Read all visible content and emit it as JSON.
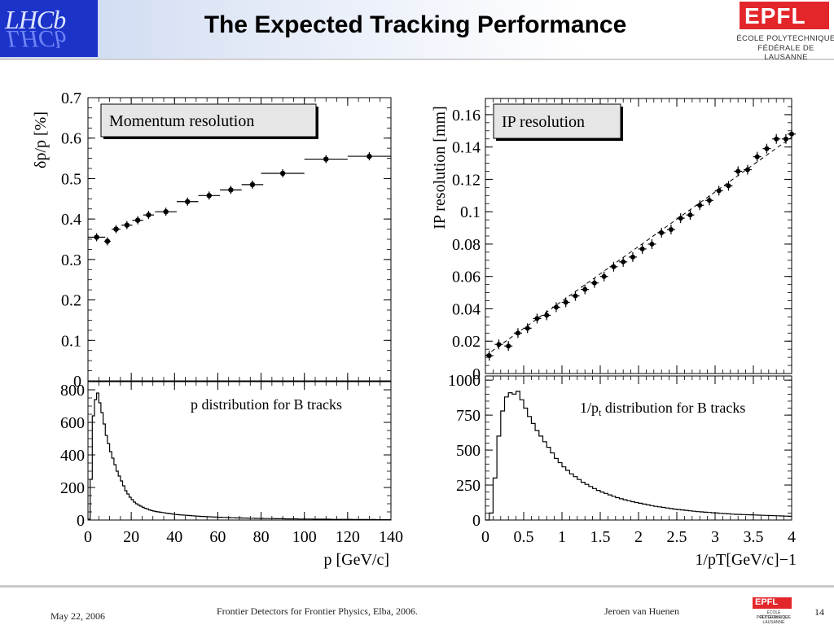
{
  "header": {
    "title": "The Expected Tracking Performance",
    "left_logo_text": "LHCb",
    "right_logo": {
      "mark": "EPFL",
      "line1": "ÉCOLE POLYTECHNIQUE",
      "line2": "FÉDÉRALE DE LAUSANNE"
    }
  },
  "footer": {
    "date": "May 22, 2006",
    "event": "Frontier Detectors for Frontier Physics, Elba, 2006.",
    "author": "Jeroen van Huenen",
    "page": "14"
  },
  "colors": {
    "logo_blue": "#1b33c9",
    "epfl_red": "#e3262a",
    "label_box": "#e6e6e6"
  },
  "chart_data": [
    {
      "id": "momentum-resolution",
      "type": "scatter",
      "label": "Momentum resolution",
      "ylabel": "δp/p [%]",
      "xlim": [
        0,
        140
      ],
      "ylim": [
        0,
        0.7
      ],
      "yticks": [
        "0",
        "0.1",
        "0.2",
        "0.3",
        "0.4",
        "0.5",
        "0.6",
        "0.7"
      ],
      "grid": false,
      "points": [
        {
          "x": 4,
          "xerr": 4,
          "y": 0.355
        },
        {
          "x": 9,
          "xerr": 1.5,
          "y": 0.345
        },
        {
          "x": 13,
          "xerr": 2,
          "y": 0.375
        },
        {
          "x": 18,
          "xerr": 2.5,
          "y": 0.385
        },
        {
          "x": 23,
          "xerr": 2.5,
          "y": 0.397
        },
        {
          "x": 28,
          "xerr": 2.5,
          "y": 0.41
        },
        {
          "x": 36,
          "xerr": 5,
          "y": 0.418
        },
        {
          "x": 46,
          "xerr": 5,
          "y": 0.443
        },
        {
          "x": 56,
          "xerr": 5,
          "y": 0.458
        },
        {
          "x": 66,
          "xerr": 5,
          "y": 0.472
        },
        {
          "x": 76,
          "xerr": 5,
          "y": 0.485
        },
        {
          "x": 90,
          "xerr": 10,
          "y": 0.513
        },
        {
          "x": 110,
          "xerr": 10,
          "y": 0.548
        },
        {
          "x": 130,
          "xerr": 10,
          "y": 0.555
        }
      ]
    },
    {
      "id": "p-distribution",
      "type": "area",
      "label": "p distribution for B tracks",
      "xlabel": "p [GeV/c]",
      "xlim": [
        0,
        140
      ],
      "ylim": [
        0,
        850
      ],
      "xticks": [
        "0",
        "20",
        "40",
        "60",
        "80",
        "100",
        "120",
        "140"
      ],
      "yticks": [
        "0",
        "200",
        "400",
        "600",
        "800"
      ],
      "bin_width": 1,
      "values": [
        5,
        250,
        640,
        740,
        780,
        720,
        660,
        590,
        520,
        470,
        420,
        380,
        340,
        300,
        270,
        240,
        210,
        180,
        160,
        140,
        125,
        110,
        100,
        92,
        85,
        78,
        72,
        68,
        62,
        58,
        55,
        52,
        50,
        48,
        46,
        44,
        42,
        40,
        38,
        36,
        34,
        33,
        32,
        31,
        30,
        29,
        28,
        27,
        26,
        25,
        24,
        23,
        22,
        22,
        21,
        20,
        20,
        19,
        18,
        18,
        17,
        17,
        16,
        16,
        15,
        15,
        14,
        14,
        13,
        13,
        13,
        12,
        12,
        12,
        11,
        11,
        11,
        10,
        10,
        10,
        10,
        9,
        9,
        9,
        9,
        9,
        8,
        8,
        8,
        8,
        8,
        7,
        7,
        7,
        7,
        7,
        7,
        6,
        6,
        6,
        6,
        6,
        6,
        6,
        5,
        5,
        5,
        5,
        5,
        5,
        5,
        5,
        4,
        4,
        4,
        4,
        4,
        4,
        4,
        4,
        4,
        4,
        3,
        3,
        3,
        3,
        3,
        3,
        3,
        3,
        3,
        3,
        3,
        2,
        2,
        2,
        2,
        2,
        2,
        2
      ]
    },
    {
      "id": "ip-resolution",
      "type": "scatter",
      "label": "IP resolution",
      "ylabel": "IP resolution [mm]",
      "xlim": [
        0,
        4
      ],
      "ylim": [
        0,
        0.17
      ],
      "yticks": [
        "0",
        "0.02",
        "0.04",
        "0.06",
        "0.08",
        "0.1",
        "0.12",
        "0.14",
        "0.16"
      ],
      "grid": false,
      "fit_line": {
        "x": [
          0,
          4
        ],
        "y": [
          0.011,
          0.146
        ]
      },
      "points": [
        {
          "x": 0.05,
          "y": 0.011
        },
        {
          "x": 0.175,
          "y": 0.018
        },
        {
          "x": 0.3,
          "y": 0.017
        },
        {
          "x": 0.425,
          "y": 0.025
        },
        {
          "x": 0.55,
          "y": 0.028
        },
        {
          "x": 0.675,
          "y": 0.034
        },
        {
          "x": 0.8,
          "y": 0.036
        },
        {
          "x": 0.925,
          "y": 0.041
        },
        {
          "x": 1.05,
          "y": 0.044
        },
        {
          "x": 1.175,
          "y": 0.048
        },
        {
          "x": 1.3,
          "y": 0.052
        },
        {
          "x": 1.425,
          "y": 0.056
        },
        {
          "x": 1.55,
          "y": 0.06
        },
        {
          "x": 1.675,
          "y": 0.066
        },
        {
          "x": 1.8,
          "y": 0.069
        },
        {
          "x": 1.925,
          "y": 0.072
        },
        {
          "x": 2.05,
          "y": 0.077
        },
        {
          "x": 2.175,
          "y": 0.08
        },
        {
          "x": 2.3,
          "y": 0.087
        },
        {
          "x": 2.425,
          "y": 0.089
        },
        {
          "x": 2.55,
          "y": 0.096
        },
        {
          "x": 2.675,
          "y": 0.098
        },
        {
          "x": 2.8,
          "y": 0.104
        },
        {
          "x": 2.925,
          "y": 0.107
        },
        {
          "x": 3.05,
          "y": 0.113
        },
        {
          "x": 3.175,
          "y": 0.116
        },
        {
          "x": 3.3,
          "y": 0.125
        },
        {
          "x": 3.425,
          "y": 0.126
        },
        {
          "x": 3.55,
          "y": 0.134
        },
        {
          "x": 3.675,
          "y": 0.139
        },
        {
          "x": 3.8,
          "y": 0.145
        },
        {
          "x": 3.925,
          "y": 0.145
        },
        {
          "x": 4.0,
          "y": 0.148
        }
      ]
    },
    {
      "id": "inv-pt-distribution",
      "type": "area",
      "label_main": "1/p",
      "label_sub": "t",
      "label_rest": " distribution for B tracks",
      "xlabel": "1/pT[GeV/c]−1",
      "xlim": [
        0,
        4
      ],
      "ylim": [
        0,
        1030
      ],
      "xticks": [
        "0",
        "0.5",
        "1",
        "1.5",
        "2",
        "2.5",
        "3",
        "3.5",
        "4"
      ],
      "yticks": [
        "0",
        "250",
        "500",
        "750",
        "1000"
      ],
      "bin_width": 0.05,
      "values": [
        0,
        50,
        300,
        600,
        780,
        880,
        910,
        900,
        920,
        860,
        800,
        740,
        690,
        640,
        600,
        560,
        520,
        480,
        440,
        410,
        380,
        355,
        330,
        310,
        290,
        270,
        255,
        240,
        225,
        212,
        200,
        190,
        180,
        170,
        160,
        152,
        145,
        138,
        131,
        125,
        120,
        114,
        108,
        103,
        98,
        94,
        90,
        86,
        82,
        78,
        75,
        72,
        69,
        66,
        63,
        60,
        58,
        56,
        54,
        52,
        50,
        48,
        46,
        44,
        42,
        41,
        40,
        39,
        38,
        37,
        36,
        35,
        34,
        33,
        32,
        31,
        30,
        29,
        28,
        27
      ]
    }
  ]
}
